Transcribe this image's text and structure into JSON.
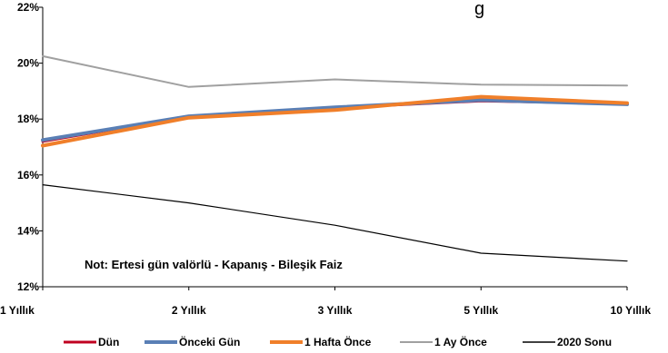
{
  "chart_data": {
    "type": "line",
    "title": "",
    "title_visible_fragment": "g",
    "categories": [
      "1 Yıllık",
      "2 Yıllık",
      "3 Yıllık",
      "5 Yıllık",
      "10 Yıllık"
    ],
    "ylim": [
      12,
      22
    ],
    "yticks": [
      12,
      14,
      16,
      18,
      20,
      22
    ],
    "ytick_labels": [
      "12%",
      "14%",
      "16%",
      "18%",
      "20%",
      "22%"
    ],
    "grid": false,
    "legend_position": "bottom",
    "annotation": "Not: Ertesi gün valörlü - Kapanış - Bileşik Faiz",
    "series": [
      {
        "name": "Dün",
        "color": "#c00020",
        "width": 3,
        "values": [
          17.2,
          18.1,
          18.4,
          18.65,
          18.55
        ]
      },
      {
        "name": "Önceki Gün",
        "color": "#5a7fb5",
        "width": 4,
        "values": [
          17.25,
          18.1,
          18.42,
          18.68,
          18.53
        ]
      },
      {
        "name": "1 Hafta Önce",
        "color": "#f07f2a",
        "width": 4,
        "values": [
          17.05,
          18.05,
          18.32,
          18.8,
          18.57
        ]
      },
      {
        "name": "1 Ay Önce",
        "color": "#a0a0a0",
        "width": 2,
        "values": [
          20.25,
          19.15,
          19.42,
          19.23,
          19.2
        ]
      },
      {
        "name": "2020 Sonu",
        "color": "#000000",
        "width": 1.2,
        "values": [
          15.65,
          15.0,
          14.2,
          13.2,
          12.92
        ]
      }
    ]
  }
}
